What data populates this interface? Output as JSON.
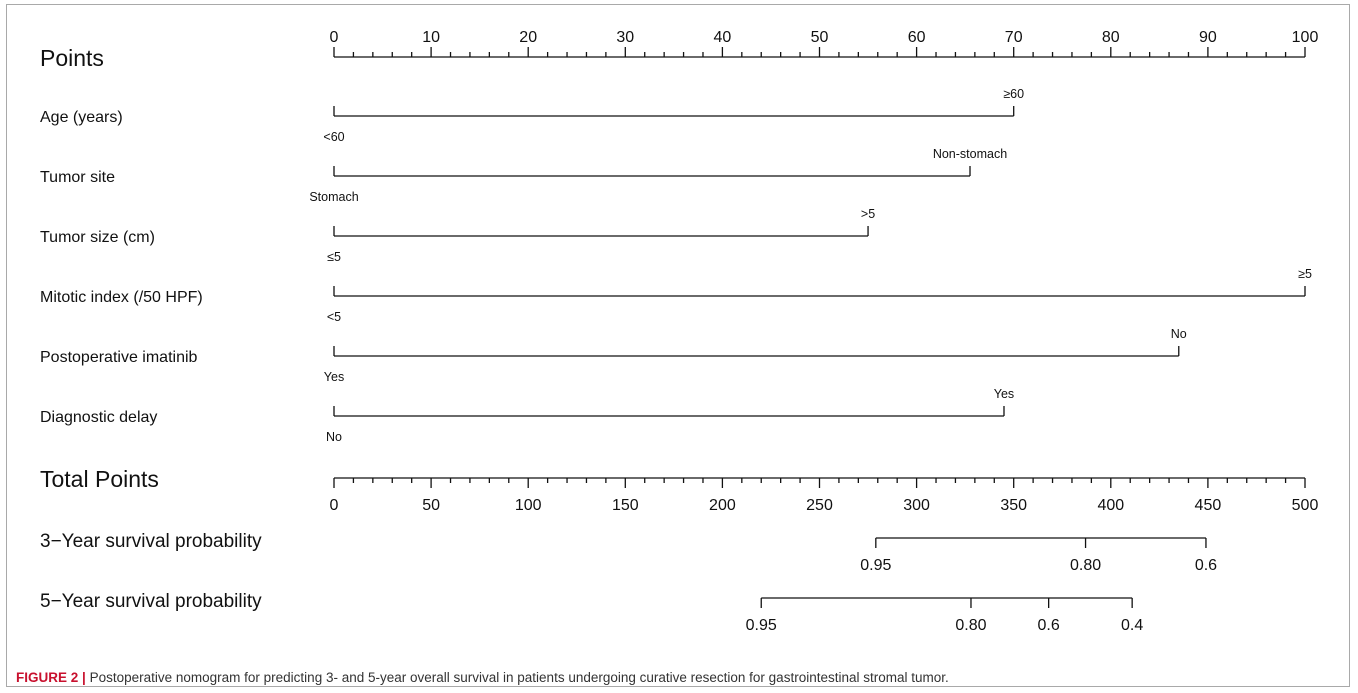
{
  "figure": {
    "label": "FIGURE 2",
    "separator": "|",
    "caption": "Postoperative nomogram for predicting 3- and 5-year overall survival in patients undergoing curative resection for gastrointestinal stromal tumor.",
    "label_color": "#c8102e"
  },
  "chart_data": {
    "type": "nomogram",
    "points_axis": {
      "label": "Points",
      "range": [
        0,
        100
      ],
      "ticks": [
        "0",
        "10",
        "20",
        "30",
        "40",
        "50",
        "60",
        "70",
        "80",
        "90",
        "100"
      ],
      "minor_step": 2
    },
    "variables": [
      {
        "name": "Age (years)",
        "levels": [
          {
            "label": "<60",
            "points": 0
          },
          {
            "label": "≥60",
            "points": 70
          }
        ]
      },
      {
        "name": "Tumor site",
        "levels": [
          {
            "label": "Stomach",
            "points": 0
          },
          {
            "label": "Non-stomach",
            "points": 65.5
          }
        ]
      },
      {
        "name": "Tumor size (cm)",
        "levels": [
          {
            "label": "≤5",
            "points": 0
          },
          {
            "label": ">5",
            "points": 55
          }
        ]
      },
      {
        "name": "Mitotic index (/50 HPF)",
        "levels": [
          {
            "label": "<5",
            "points": 0
          },
          {
            "label": "≥5",
            "points": 100
          }
        ]
      },
      {
        "name": "Postoperative imatinib",
        "levels": [
          {
            "label": "Yes",
            "points": 0
          },
          {
            "label": "No",
            "points": 87
          }
        ]
      },
      {
        "name": "Diagnostic delay",
        "levels": [
          {
            "label": "No",
            "points": 0
          },
          {
            "label": "Yes",
            "points": 69
          }
        ]
      }
    ],
    "total_points_axis": {
      "label": "Total Points",
      "range": [
        0,
        500
      ],
      "ticks": [
        "0",
        "50",
        "100",
        "150",
        "200",
        "250",
        "300",
        "350",
        "400",
        "450",
        "500"
      ],
      "minor_step": 10
    },
    "survival_scales": [
      {
        "name": "3−Year survival probability",
        "ticks": [
          {
            "label": "0.95",
            "total_points": 279
          },
          {
            "label": "0.80",
            "total_points": 387
          },
          {
            "label": "0.6",
            "total_points": 449
          }
        ]
      },
      {
        "name": "5−Year survival probability",
        "ticks": [
          {
            "label": "0.95",
            "total_points": 220
          },
          {
            "label": "0.80",
            "total_points": 328
          },
          {
            "label": "0.6",
            "total_points": 368
          },
          {
            "label": "0.4",
            "total_points": 411
          }
        ]
      }
    ]
  }
}
